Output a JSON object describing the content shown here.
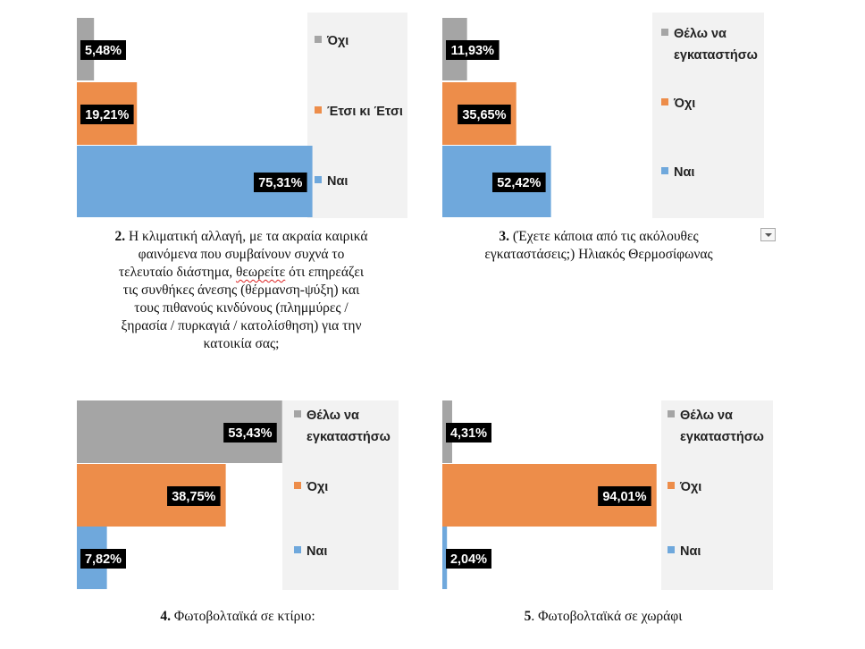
{
  "chart_data": [
    {
      "type": "bar",
      "orientation": "horizontal",
      "xlim": [
        0,
        100
      ],
      "categories": [
        "Όχι",
        "Έτσι κι Έτσι",
        "Ναι"
      ],
      "values": [
        5.48,
        19.21,
        75.31
      ],
      "labels": [
        "5,48%",
        "19,21%",
        "75,31%"
      ],
      "legend": [
        "Όχι",
        "Έτσι κι Έτσι",
        "Ναι"
      ],
      "legend_position": "right",
      "colors": [
        "#a5a5a5",
        "#ed8d4a",
        "#6fa8dc"
      ]
    },
    {
      "type": "bar",
      "orientation": "horizontal",
      "xlim": [
        0,
        100
      ],
      "categories": [
        "Θέλω να εγκαταστήσω",
        "Όχι",
        "Ναι"
      ],
      "values": [
        11.93,
        35.65,
        52.42
      ],
      "labels": [
        "11,93%",
        "35,65%",
        "52,42%"
      ],
      "legend": [
        "Θέλω να εγκαταστήσω",
        "Όχι",
        "Ναι"
      ],
      "legend_position": "right",
      "colors": [
        "#a5a5a5",
        "#ed8d4a",
        "#6fa8dc"
      ]
    },
    {
      "type": "bar",
      "orientation": "horizontal",
      "xlim": [
        0,
        100
      ],
      "categories": [
        "Θέλω να εγκαταστήσω",
        "Όχι",
        "Ναι"
      ],
      "values": [
        53.43,
        38.75,
        7.82
      ],
      "labels": [
        "53,43%",
        "38,75%",
        "7,82%"
      ],
      "legend": [
        "Θέλω να εγκαταστήσω",
        "Όχι",
        "Ναι"
      ],
      "legend_position": "right",
      "colors": [
        "#a5a5a5",
        "#ed8d4a",
        "#6fa8dc"
      ]
    },
    {
      "type": "bar",
      "orientation": "horizontal",
      "xlim": [
        0,
        100
      ],
      "categories": [
        "Θέλω να εγκαταστήσω",
        "Όχι",
        "Ναι"
      ],
      "values": [
        4.31,
        94.01,
        2.04
      ],
      "labels": [
        "4,31%",
        "94,01%",
        "2,04%"
      ],
      "legend": [
        "Θέλω να εγκαταστήσω",
        "Όχι",
        "Ναι"
      ],
      "legend_position": "right",
      "colors": [
        "#a5a5a5",
        "#ed8d4a",
        "#6fa8dc"
      ]
    }
  ],
  "captions": {
    "c2": {
      "num": "2.",
      "line1": " Η κλιματική αλλαγή, με τα ακραία καιρικά",
      "line2": "φαινόμενα που συμβαίνουν συχνά το",
      "line3a": "τελευταίο διάστημα, ",
      "line3b": "θεωρείτε",
      "line3c": " ότι επηρεάζει",
      "line4": "τις συνθήκες άνεσης (θέρμανση-ψύξη) και",
      "line5": "τους πιθανούς κινδύνους (πλημμύρες /",
      "line6": "ξηρασία / πυρκαγιά / κατολίσθηση) για την",
      "line7": "κατοικία σας;"
    },
    "c3": {
      "num": "3.",
      "line1": " (Έχετε κάποια από τις ακόλουθες",
      "line2": "εγκαταστάσεις;) Ηλιακός Θερμοσίφωνας"
    },
    "c4": {
      "num": "4.",
      "text": " Φωτοβολταϊκά σε κτίριο:"
    },
    "c5": {
      "num": "5",
      "text": ". Φωτοβολταϊκά σε χωράφι"
    }
  }
}
